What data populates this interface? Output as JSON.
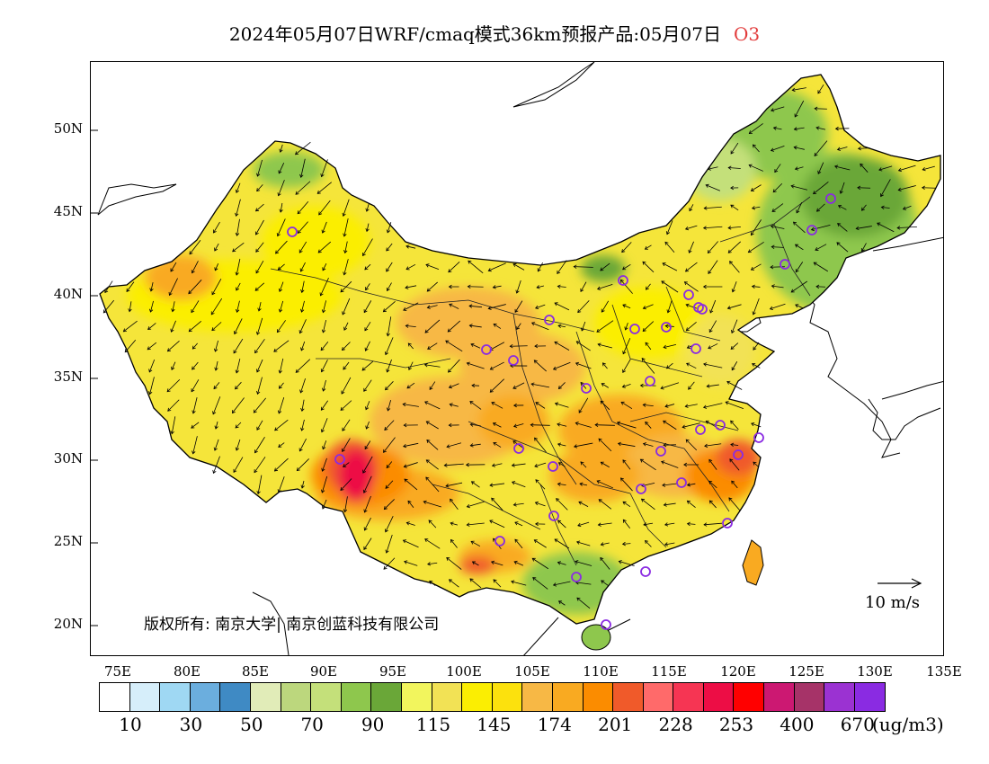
{
  "title": {
    "main": "2024年05月07日WRF/cmaq模式36km预报产品:05月07日",
    "pollutant": "O3"
  },
  "map": {
    "lat_labels": [
      "50N",
      "45N",
      "40N",
      "35N",
      "30N",
      "25N",
      "20N"
    ],
    "lon_labels": [
      "75E",
      "80E",
      "85E",
      "90E",
      "95E",
      "100E",
      "105E",
      "110E",
      "115E",
      "120E",
      "125E",
      "130E",
      "135E"
    ],
    "copyright": "版权所有: 南京大学| 南京创蓝科技有限公司",
    "reference_vector_label": "10 m/s",
    "station_marker_color": "#8a2be2"
  },
  "colorbar": {
    "colors": [
      "#ffffff",
      "#d6eefa",
      "#9fd8f3",
      "#6baede",
      "#3f8ac4",
      "#e1ecb8",
      "#bcd77d",
      "#c4e07a",
      "#8ec74d",
      "#6aa738",
      "#f2f55d",
      "#f2e255",
      "#fbee02",
      "#fce10d",
      "#f7b845",
      "#f9aa21",
      "#fb8c00",
      "#f05a2a",
      "#ff6a6a",
      "#f63553",
      "#ed0d45",
      "#ff0000",
      "#cc1872",
      "#a63368",
      "#9b32d2",
      "#8a2be2"
    ],
    "tick_labels": [
      "10",
      "30",
      "50",
      "70",
      "90",
      "115",
      "145",
      "174",
      "201",
      "228",
      "253",
      "400",
      "670"
    ],
    "unit": "(ug/m3)"
  }
}
